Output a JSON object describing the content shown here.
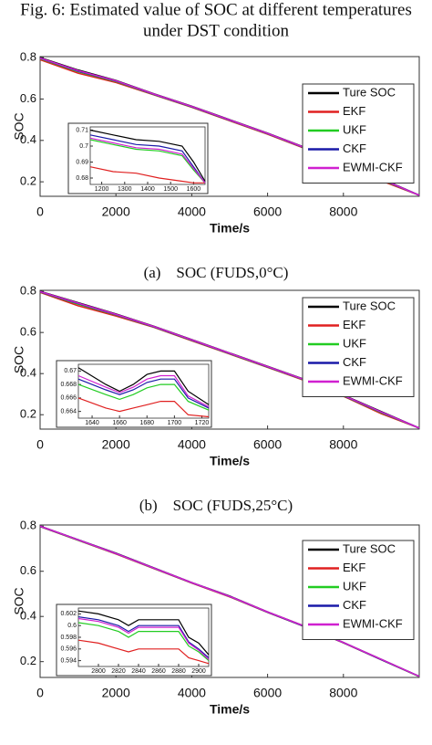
{
  "title": [
    "Fig. 6: Estimated value of SOC at different temperatures",
    "under DST condition"
  ],
  "chart_data": [
    {
      "type": "line",
      "caption": "(a)    SOC (FUDS,0°C)",
      "xlabel": "Time/s",
      "ylabel": "SOC",
      "legend": "upper right",
      "x": [
        0,
        1000,
        2000,
        3000,
        4000,
        5000,
        6000,
        7000,
        8000,
        9000,
        10000
      ],
      "xlim": [
        0,
        10000
      ],
      "ylim": [
        0.13,
        0.805
      ],
      "xticks": [
        0,
        2000,
        4000,
        6000,
        8000
      ],
      "yticks": [
        0.2,
        0.4,
        0.6,
        0.8
      ],
      "series": [
        {
          "name": "Ture SOC",
          "color": "#000000",
          "values": [
            0.8,
            0.74,
            0.69,
            0.625,
            0.565,
            0.5,
            0.435,
            0.365,
            0.295,
            0.215,
            0.135
          ]
        },
        {
          "name": "EKF",
          "color": "#e02020",
          "values": [
            0.79,
            0.725,
            0.68,
            0.62,
            0.56,
            0.495,
            0.43,
            0.36,
            0.29,
            0.205,
            0.135
          ]
        },
        {
          "name": "UKF",
          "color": "#22cc22",
          "values": [
            0.795,
            0.732,
            0.685,
            0.622,
            0.562,
            0.497,
            0.432,
            0.362,
            0.292,
            0.21,
            0.135
          ]
        },
        {
          "name": "CKF",
          "color": "#1a1aa8",
          "values": [
            0.797,
            0.735,
            0.687,
            0.623,
            0.563,
            0.498,
            0.433,
            0.363,
            0.293,
            0.212,
            0.135
          ]
        },
        {
          "name": "EWMI-CKF",
          "color": "#d020d0",
          "values": [
            0.798,
            0.737,
            0.688,
            0.624,
            0.564,
            0.499,
            0.434,
            0.364,
            0.294,
            0.213,
            0.135
          ]
        }
      ],
      "inset": {
        "x": [
          1150,
          1250,
          1350,
          1450,
          1550,
          1600,
          1650
        ],
        "xlim": [
          1150,
          1650
        ],
        "ylim": [
          0.676,
          0.712
        ],
        "xticks": [
          1200,
          1300,
          1400,
          1500,
          1600
        ],
        "yticks": [
          0.68,
          0.69,
          0.7,
          0.71
        ],
        "series": [
          {
            "values": [
              0.71,
              0.707,
              0.704,
              0.703,
              0.7,
              0.69,
              0.678
            ]
          },
          {
            "values": [
              0.687,
              0.684,
              0.683,
              0.68,
              0.678,
              0.677,
              0.677
            ]
          },
          {
            "values": [
              0.704,
              0.701,
              0.698,
              0.697,
              0.694,
              0.685,
              0.677
            ]
          },
          {
            "values": [
              0.707,
              0.704,
              0.701,
              0.7,
              0.697,
              0.687,
              0.677
            ]
          },
          {
            "values": [
              0.705,
              0.702,
              0.699,
              0.698,
              0.695,
              0.686,
              0.677
            ]
          }
        ]
      }
    },
    {
      "type": "line",
      "caption": "(b)    SOC (FUDS,25°C)",
      "xlabel": "Time/s",
      "ylabel": "SOC",
      "legend": "upper right",
      "x": [
        0,
        1000,
        2000,
        3000,
        4000,
        5000,
        6000,
        7000,
        8000,
        9000,
        10000
      ],
      "xlim": [
        0,
        10000
      ],
      "ylim": [
        0.13,
        0.805
      ],
      "xticks": [
        0,
        2000,
        4000,
        6000,
        8000
      ],
      "yticks": [
        0.2,
        0.4,
        0.6,
        0.8
      ],
      "series": [
        {
          "name": "Ture SOC",
          "color": "#000000",
          "values": [
            0.8,
            0.745,
            0.69,
            0.63,
            0.565,
            0.5,
            0.435,
            0.37,
            0.295,
            0.215,
            0.135
          ]
        },
        {
          "name": "EKF",
          "color": "#e02020",
          "values": [
            0.795,
            0.73,
            0.68,
            0.625,
            0.56,
            0.495,
            0.43,
            0.365,
            0.29,
            0.205,
            0.135
          ]
        },
        {
          "name": "UKF",
          "color": "#22cc22",
          "values": [
            0.797,
            0.738,
            0.685,
            0.627,
            0.562,
            0.497,
            0.432,
            0.367,
            0.292,
            0.21,
            0.135
          ]
        },
        {
          "name": "CKF",
          "color": "#1a1aa8",
          "values": [
            0.798,
            0.741,
            0.687,
            0.628,
            0.563,
            0.498,
            0.433,
            0.368,
            0.293,
            0.212,
            0.135
          ]
        },
        {
          "name": "EWMI-CKF",
          "color": "#d020d0",
          "values": [
            0.799,
            0.743,
            0.688,
            0.629,
            0.564,
            0.499,
            0.434,
            0.369,
            0.294,
            0.213,
            0.135
          ]
        }
      ],
      "inset": {
        "x": [
          1630,
          1650,
          1660,
          1670,
          1680,
          1690,
          1700,
          1710,
          1725
        ],
        "xlim": [
          1630,
          1725
        ],
        "ylim": [
          0.663,
          0.671
        ],
        "xticks": [
          1640,
          1660,
          1680,
          1700,
          1720
        ],
        "yticks": [
          0.664,
          0.666,
          0.668,
          0.67
        ],
        "series": [
          {
            "values": [
              0.6705,
              0.668,
              0.667,
              0.668,
              0.6695,
              0.67,
              0.67,
              0.667,
              0.665
            ]
          },
          {
            "values": [
              0.666,
              0.6645,
              0.664,
              0.6645,
              0.665,
              0.6655,
              0.6655,
              0.6635,
              0.6632
            ]
          },
          {
            "values": [
              0.668,
              0.6665,
              0.6658,
              0.6665,
              0.6675,
              0.668,
              0.668,
              0.6655,
              0.6642
            ]
          },
          {
            "values": [
              0.6688,
              0.6672,
              0.6665,
              0.6672,
              0.6683,
              0.6688,
              0.6688,
              0.666,
              0.6645
            ]
          },
          {
            "values": [
              0.6693,
              0.6676,
              0.6668,
              0.6676,
              0.6688,
              0.6693,
              0.6693,
              0.6663,
              0.6647
            ]
          }
        ]
      }
    },
    {
      "type": "line",
      "xlabel": "Time/s",
      "ylabel": "SOC",
      "legend": "upper right",
      "x": [
        0,
        1000,
        2000,
        3000,
        4000,
        5000,
        6000,
        7000,
        8000,
        9000,
        10000
      ],
      "xlim": [
        0,
        10000
      ],
      "ylim": [
        0.13,
        0.805
      ],
      "xticks": [
        0,
        2000,
        4000,
        6000,
        8000
      ],
      "yticks": [
        0.2,
        0.4,
        0.6,
        0.8
      ],
      "series": [
        {
          "name": "Ture SOC",
          "color": "#000000",
          "values": [
            0.8,
            0.74,
            0.68,
            0.615,
            0.55,
            0.49,
            0.42,
            0.355,
            0.285,
            0.21,
            0.135
          ]
        },
        {
          "name": "EKF",
          "color": "#e02020",
          "values": [
            0.798,
            0.737,
            0.677,
            0.612,
            0.548,
            0.487,
            0.418,
            0.353,
            0.283,
            0.208,
            0.134
          ]
        },
        {
          "name": "UKF",
          "color": "#22cc22",
          "values": [
            0.799,
            0.738,
            0.678,
            0.613,
            0.549,
            0.488,
            0.419,
            0.354,
            0.284,
            0.209,
            0.134
          ]
        },
        {
          "name": "CKF",
          "color": "#1a1aa8",
          "values": [
            0.799,
            0.739,
            0.679,
            0.614,
            0.549,
            0.489,
            0.419,
            0.354,
            0.284,
            0.209,
            0.135
          ]
        },
        {
          "name": "EWMI-CKF",
          "color": "#d020d0",
          "values": [
            0.8,
            0.739,
            0.679,
            0.614,
            0.55,
            0.489,
            0.42,
            0.355,
            0.285,
            0.21,
            0.135
          ]
        }
      ],
      "inset": {
        "x": [
          2780,
          2800,
          2820,
          2830,
          2840,
          2860,
          2880,
          2890,
          2900,
          2910
        ],
        "xlim": [
          2780,
          2910
        ],
        "ylim": [
          0.593,
          0.603
        ],
        "xticks": [
          2800,
          2820,
          2840,
          2860,
          2880,
          2900
        ],
        "yticks": [
          0.594,
          0.596,
          0.598,
          0.6,
          0.602
        ],
        "series": [
          {
            "values": [
              0.6025,
              0.602,
              0.601,
              0.6,
              0.601,
              0.601,
              0.601,
              0.598,
              0.597,
              0.595
            ]
          },
          {
            "values": [
              0.5975,
              0.597,
              0.596,
              0.5955,
              0.596,
              0.596,
              0.596,
              0.5945,
              0.594,
              0.5935
            ]
          },
          {
            "values": [
              0.6005,
              0.6,
              0.599,
              0.598,
              0.599,
              0.599,
              0.599,
              0.5965,
              0.5955,
              0.594
            ]
          },
          {
            "values": [
              0.6015,
              0.601,
              0.6,
              0.599,
              0.6,
              0.6,
              0.6,
              0.5972,
              0.596,
              0.5945
            ]
          },
          {
            "values": [
              0.6012,
              0.6007,
              0.5997,
              0.5987,
              0.5997,
              0.5997,
              0.5997,
              0.597,
              0.5958,
              0.5942
            ]
          }
        ]
      }
    }
  ]
}
